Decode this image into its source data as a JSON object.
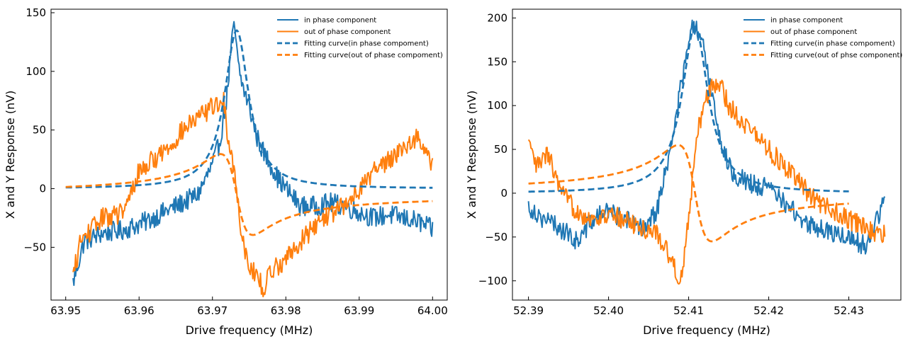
{
  "colors": {
    "in_phase": "#1f77b4",
    "out_of_phase": "#ff7f0e",
    "axis": "#000000"
  },
  "chart_data": [
    {
      "type": "line",
      "xlabel": "Drive frequency (MHz)",
      "ylabel": "X and Y Response (nV)",
      "xlim": [
        63.948,
        64.002
      ],
      "ylim": [
        -95,
        153
      ],
      "xticks": [
        63.95,
        63.96,
        63.97,
        63.98,
        63.99,
        64.0
      ],
      "xtick_labels": [
        "63.95",
        "63.96",
        "63.97",
        "63.98",
        "63.99",
        "64.00"
      ],
      "yticks": [
        -50,
        0,
        50,
        100,
        150
      ],
      "ytick_labels": [
        "−50",
        "0",
        "50",
        "100",
        "150"
      ],
      "grid": false,
      "legend_position": "top-right",
      "legend": [
        "in phase component",
        "out of phase component",
        "Fitting curve(in phase compoment)",
        "Fitting curve(out of phase compoment)"
      ],
      "series": [
        {
          "name": "in phase component",
          "style": "solid",
          "color": "#1f77b4",
          "x": [
            63.951,
            63.9525,
            63.955,
            63.958,
            63.961,
            63.964,
            63.966,
            63.968,
            63.97,
            63.971,
            63.972,
            63.9725,
            63.973,
            63.9735,
            63.974,
            63.975,
            63.976,
            63.977,
            63.978,
            63.979,
            63.98,
            63.982,
            63.984,
            63.986,
            63.988,
            63.99,
            63.992,
            63.994,
            63.996,
            63.998,
            64.0
          ],
          "y": [
            -80,
            -45,
            -38,
            -35,
            -28,
            -18,
            -12,
            -5,
            20,
            40,
            80,
            118,
            140,
            105,
            90,
            70,
            45,
            30,
            20,
            8,
            0,
            -15,
            -15,
            -12,
            -15,
            -20,
            -25,
            -22,
            -25,
            -28,
            -35
          ]
        },
        {
          "name": "out of phase component",
          "style": "solid",
          "color": "#ff7f0e",
          "x": [
            63.951,
            63.952,
            63.955,
            63.958,
            63.96,
            63.962,
            63.964,
            63.966,
            63.968,
            63.97,
            63.9715,
            63.972,
            63.973,
            63.974,
            63.975,
            63.976,
            63.977,
            63.978,
            63.98,
            63.982,
            63.985,
            63.988,
            63.99,
            63.992,
            63.994,
            63.996,
            63.998,
            64.0
          ],
          "y": [
            -75,
            -45,
            -25,
            -20,
            15,
            25,
            35,
            50,
            60,
            70,
            75,
            50,
            15,
            -40,
            -65,
            -75,
            -85,
            -70,
            -60,
            -45,
            -25,
            -15,
            0,
            15,
            25,
            35,
            45,
            20
          ]
        },
        {
          "name": "Fitting curve(in phase compoment)",
          "style": "dashed",
          "color": "#1f77b4",
          "fit": {
            "kind": "lorentz_abs",
            "center": 63.9733,
            "gamma": 0.002,
            "amplitude": 135
          }
        },
        {
          "name": "Fitting curve(out of phase compoment)",
          "style": "dashed",
          "color": "#ff7f0e",
          "fit": {
            "kind": "lorentz_disp",
            "center": 63.9733,
            "gamma": 0.0022,
            "amplitude": 138,
            "offset": -5
          }
        }
      ]
    },
    {
      "type": "line",
      "xlabel": "Drive frequency (MHz)",
      "ylabel": "X and Y Response (nV)",
      "xlim": [
        52.388,
        52.4365
      ],
      "ylim": [
        -122,
        210
      ],
      "xticks": [
        52.39,
        52.4,
        52.41,
        52.42,
        52.43
      ],
      "xtick_labels": [
        "52.39",
        "52.40",
        "52.41",
        "52.42",
        "52.43"
      ],
      "yticks": [
        -100,
        -50,
        0,
        50,
        100,
        150,
        200
      ],
      "ytick_labels": [
        "−100",
        "−50",
        "0",
        "50",
        "100",
        "150",
        "200"
      ],
      "grid": false,
      "legend_position": "top-right",
      "legend": [
        "in phase component",
        "out of phase component",
        "Fitting curve(in phase compoment)",
        "Fitting curve(out of phse component)"
      ],
      "series": [
        {
          "name": "in phase component",
          "style": "solid",
          "color": "#1f77b4",
          "x": [
            52.39,
            52.392,
            52.394,
            52.396,
            52.398,
            52.4,
            52.402,
            52.404,
            52.406,
            52.407,
            52.408,
            52.409,
            52.41,
            52.4105,
            52.411,
            52.412,
            52.413,
            52.414,
            52.415,
            52.416,
            52.418,
            52.42,
            52.422,
            52.424,
            52.426,
            52.428,
            52.43,
            52.432,
            52.434,
            52.4345
          ],
          "y": [
            -15,
            -30,
            -40,
            -55,
            -30,
            -20,
            -30,
            -40,
            -20,
            20,
            60,
            120,
            170,
            190,
            185,
            160,
            110,
            60,
            30,
            20,
            10,
            5,
            -10,
            -30,
            -40,
            -45,
            -50,
            -60,
            -20,
            0
          ]
        },
        {
          "name": "out of phase component",
          "style": "solid",
          "color": "#ff7f0e",
          "x": [
            52.39,
            52.391,
            52.3925,
            52.394,
            52.396,
            52.398,
            52.4,
            52.402,
            52.404,
            52.406,
            52.407,
            52.408,
            52.409,
            52.41,
            52.411,
            52.412,
            52.413,
            52.414,
            52.415,
            52.416,
            52.418,
            52.42,
            52.422,
            52.424,
            52.426,
            52.428,
            52.43,
            52.432,
            52.434,
            52.4345
          ],
          "y": [
            55,
            30,
            45,
            0,
            -20,
            -30,
            -25,
            -30,
            -40,
            -45,
            -60,
            -80,
            -100,
            -30,
            60,
            110,
            120,
            125,
            100,
            90,
            70,
            50,
            30,
            10,
            -10,
            -20,
            -30,
            -40,
            -50,
            -45
          ]
        },
        {
          "name": "Fitting curve(in phase compoment)",
          "style": "dashed",
          "color": "#1f77b4",
          "fit": {
            "kind": "lorentz_abs",
            "center": 52.4108,
            "gamma": 0.002,
            "amplitude": 190
          }
        },
        {
          "name": "Fitting curve(out of phse component)",
          "style": "dashed",
          "color": "#ff7f0e",
          "fit": {
            "kind": "lorentz_disp",
            "center": 52.4108,
            "gamma": 0.0021,
            "amplitude": 220,
            "offset": 0
          }
        }
      ]
    }
  ]
}
